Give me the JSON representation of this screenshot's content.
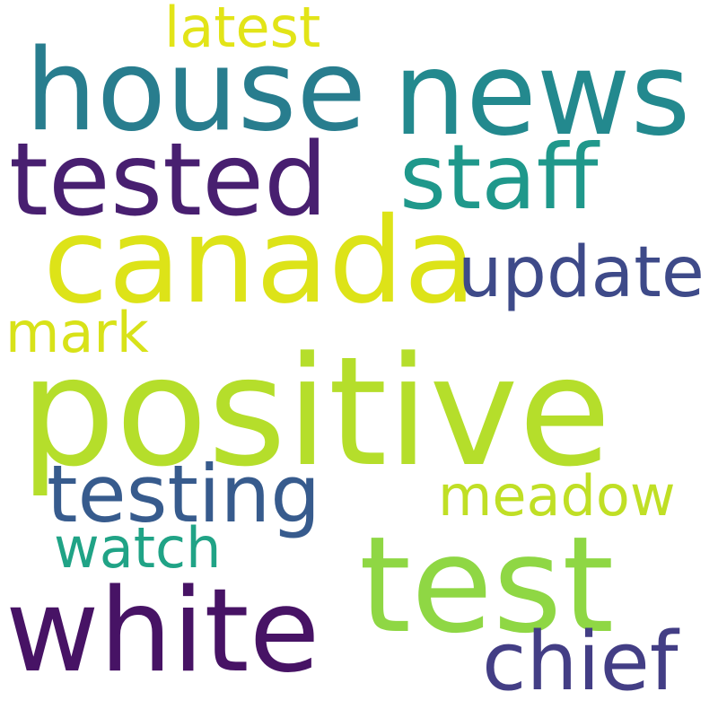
{
  "words": [
    {
      "key": "positive",
      "text": "positive",
      "color": "#b5de2b"
    },
    {
      "key": "canada",
      "text": "canada",
      "color": "#dde318"
    },
    {
      "key": "house",
      "text": "house",
      "color": "#287d8e"
    },
    {
      "key": "news",
      "text": "news",
      "color": "#23898e"
    },
    {
      "key": "tested",
      "text": "tested",
      "color": "#481f70"
    },
    {
      "key": "staff",
      "text": "staff",
      "color": "#1f988b"
    },
    {
      "key": "test",
      "text": "test",
      "color": "#8fd744"
    },
    {
      "key": "white",
      "text": "white",
      "color": "#471365"
    },
    {
      "key": "testing",
      "text": "testing",
      "color": "#375b8d"
    },
    {
      "key": "update",
      "text": "update",
      "color": "#3e4a89"
    },
    {
      "key": "chief",
      "text": "chief",
      "color": "#433e85"
    },
    {
      "key": "meadow",
      "text": "meadow",
      "color": "#c0df25"
    },
    {
      "key": "latest",
      "text": "latest",
      "color": "#e2e418"
    },
    {
      "key": "mark",
      "text": "mark",
      "color": "#d8e219"
    },
    {
      "key": "watch",
      "text": "watch",
      "color": "#20a386"
    }
  ]
}
